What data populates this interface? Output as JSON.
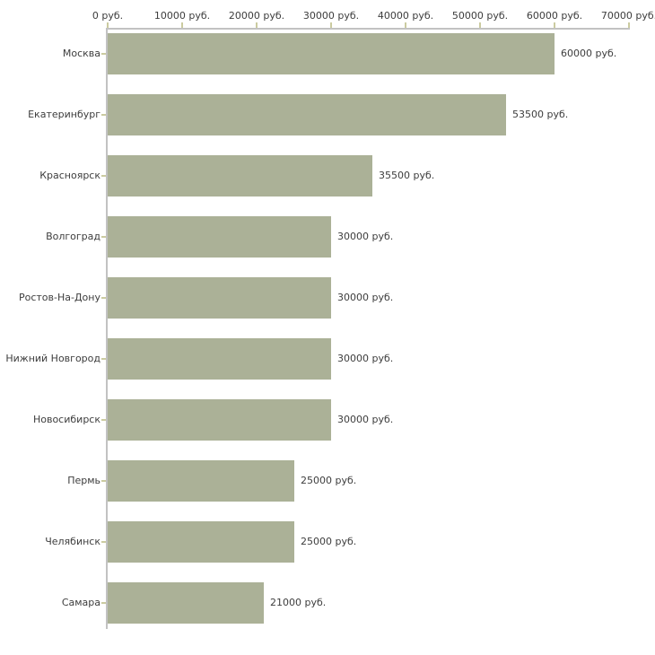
{
  "chart_data": {
    "type": "bar",
    "orientation": "horizontal",
    "title": "",
    "xlabel": "",
    "ylabel": "",
    "xlim": [
      0,
      70000
    ],
    "grid": false,
    "legend": null,
    "categories": [
      "Москва",
      "Екатеринбург",
      "Красноярск",
      "Волгоград",
      "Ростов-На-Дону",
      "Нижний Новгород",
      "Новосибирск",
      "Пермь",
      "Челябинск",
      "Самара"
    ],
    "values": [
      60000,
      53500,
      35500,
      30000,
      30000,
      30000,
      30000,
      25000,
      25000,
      21000
    ],
    "value_labels": [
      "60000 руб.",
      "53500 руб.",
      "35500 руб.",
      "30000 руб.",
      "30000 руб.",
      "30000 руб.",
      "30000 руб.",
      "25000 руб.",
      "25000 руб.",
      "21000 руб."
    ],
    "x_ticks": [
      {
        "value": 0,
        "label": "0 руб."
      },
      {
        "value": 10000,
        "label": "10000 руб."
      },
      {
        "value": 20000,
        "label": "20000 руб."
      },
      {
        "value": 30000,
        "label": "30000 руб."
      },
      {
        "value": 40000,
        "label": "40000 руб."
      },
      {
        "value": 50000,
        "label": "50000 руб."
      },
      {
        "value": 60000,
        "label": "60000 руб."
      },
      {
        "value": 70000,
        "label": "70000 руб."
      }
    ],
    "colors": {
      "bar": "#abb197",
      "axis": "#c2c2c2",
      "tick": "#cbcba0",
      "text": "#3d3d3d",
      "background": "#ffffff"
    }
  }
}
